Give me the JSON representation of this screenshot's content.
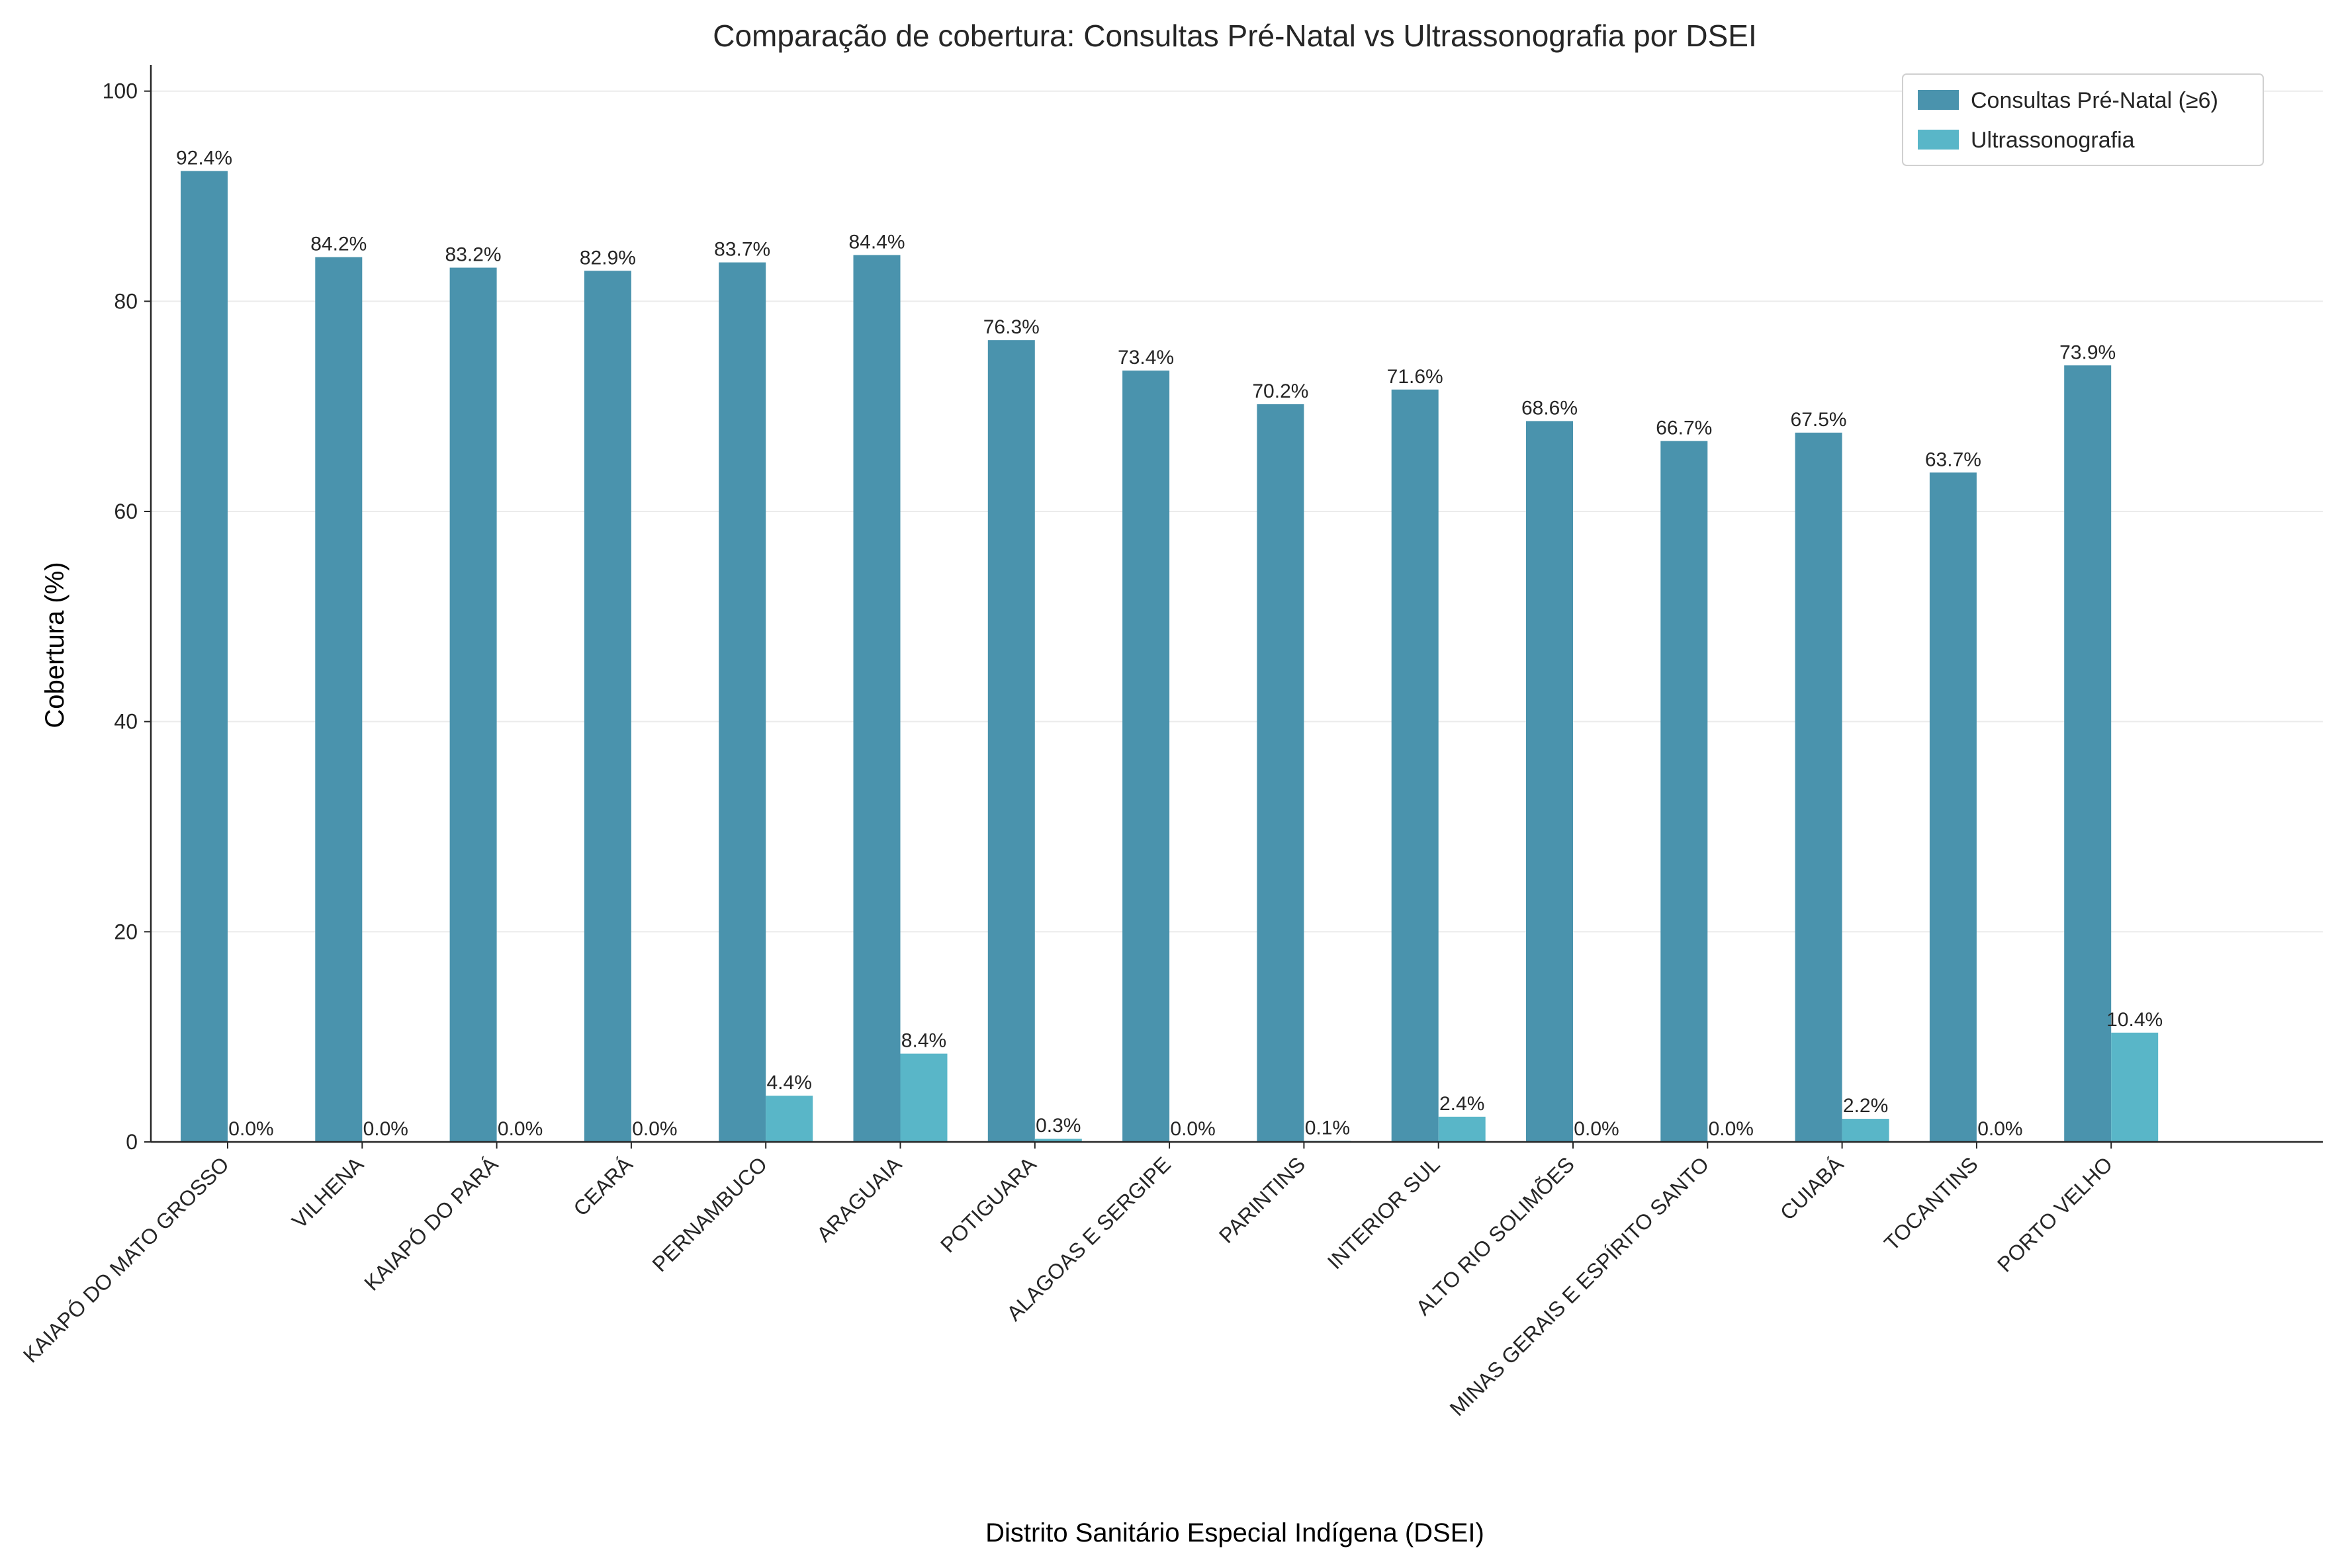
{
  "chart_data": {
    "type": "bar",
    "title": "Comparação de cobertura: Consultas Pré-Natal vs Ultrassonografia por DSEI",
    "xlabel": "Distrito Sanitário Especial Indígena (DSEI)",
    "ylabel": "Cobertura (%)",
    "ylim": [
      0,
      102.5
    ],
    "yticks": [
      "0",
      "20",
      "40",
      "60",
      "80",
      "100"
    ],
    "grid": "horizontal",
    "legend_position": "top-right",
    "categories": [
      "KAIAPÓ DO MATO GROSSO",
      "VILHENA",
      "KAIAPÓ DO PARÁ",
      "CEARÁ",
      "PERNAMBUCO",
      "ARAGUAIA",
      "POTIGUARA",
      "ALAGOAS E SERGIPE",
      "PARINTINS",
      "INTERIOR SUL",
      "ALTO RIO SOLIMÕES",
      "MINAS GERAIS E ESPÍRITO SANTO",
      "CUIABÁ",
      "TOCANTINS",
      "PORTO VELHO"
    ],
    "series": [
      {
        "name": "Consultas Pré-Natal (≥6)",
        "color": "#4a93ad",
        "values": [
          92.4,
          84.2,
          83.2,
          82.9,
          83.7,
          84.4,
          76.3,
          73.4,
          70.2,
          71.6,
          68.6,
          66.7,
          67.5,
          63.7,
          73.9
        ],
        "labels": [
          "92.4%",
          "84.2%",
          "83.2%",
          "82.9%",
          "83.7%",
          "84.4%",
          "76.3%",
          "73.4%",
          "70.2%",
          "71.6%",
          "68.6%",
          "66.7%",
          "67.5%",
          "63.7%",
          "73.9%"
        ]
      },
      {
        "name": "Ultrassonografia",
        "color": "#59b6c8",
        "values": [
          0.0,
          0.0,
          0.0,
          0.0,
          4.4,
          8.4,
          0.3,
          0.0,
          0.1,
          2.4,
          0.0,
          0.0,
          2.2,
          0.0,
          10.4
        ],
        "labels": [
          "0.0%",
          "0.0%",
          "0.0%",
          "0.0%",
          "4.4%",
          "8.4%",
          "0.3%",
          "0.0%",
          "0.1%",
          "2.4%",
          "0.0%",
          "0.0%",
          "2.2%",
          "0.0%",
          "10.4%"
        ]
      }
    ]
  }
}
